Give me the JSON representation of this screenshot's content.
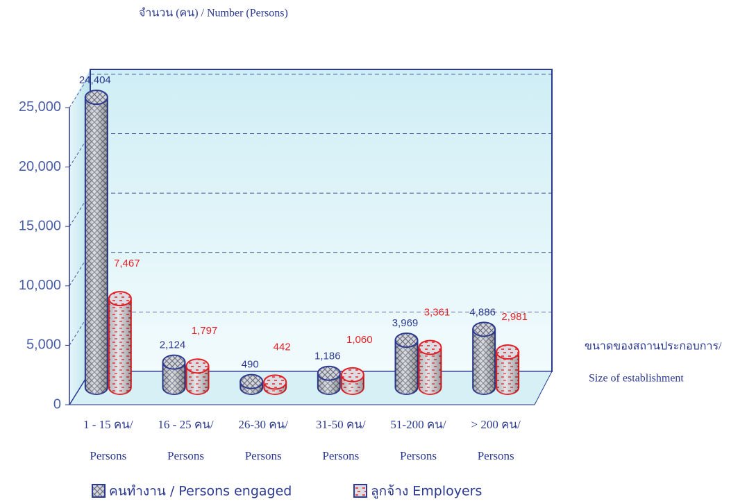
{
  "chart_data": {
    "type": "bar",
    "y_label": "จำนวน (คน) / Number (Persons)",
    "x_label": [
      "ขนาดของสถานประกอบการ/",
      "Size of establishment"
    ],
    "categories": [
      [
        "1 - 15 คน/",
        "Persons"
      ],
      [
        "16 - 25 คน/",
        "Persons"
      ],
      [
        "26-30 คน/",
        "Persons"
      ],
      [
        "31-50 คน/",
        "Persons"
      ],
      [
        "51-200 คน/",
        "Persons"
      ],
      [
        "> 200 คน/",
        "Persons"
      ]
    ],
    "series": [
      {
        "name": "คนทำงาน / Persons engaged",
        "color": "#2b3990",
        "values": [
          24404,
          2124,
          490,
          1186,
          3969,
          4886
        ],
        "value_labels": [
          "24,404",
          "2,124",
          "490",
          "1,186",
          "3,969",
          "4,886"
        ]
      },
      {
        "name": "ลูกจ้าง Employers",
        "color": "#e31e24",
        "values": [
          7467,
          1797,
          442,
          1060,
          3361,
          2981
        ],
        "value_labels": [
          "7,467",
          "1,797",
          "442",
          "1,060",
          "3,361",
          "2,981"
        ]
      }
    ],
    "ylim": [
      0,
      28000
    ],
    "yticks": [
      0,
      {
        "value": 5000,
        "label": "5,000"
      },
      {
        "value": 10000,
        "label": "10,000"
      },
      {
        "value": 15000,
        "label": "15,000"
      },
      {
        "value": 20000,
        "label": "20,000"
      },
      {
        "value": 25000,
        "label": "25,000"
      }
    ],
    "grid": true
  }
}
